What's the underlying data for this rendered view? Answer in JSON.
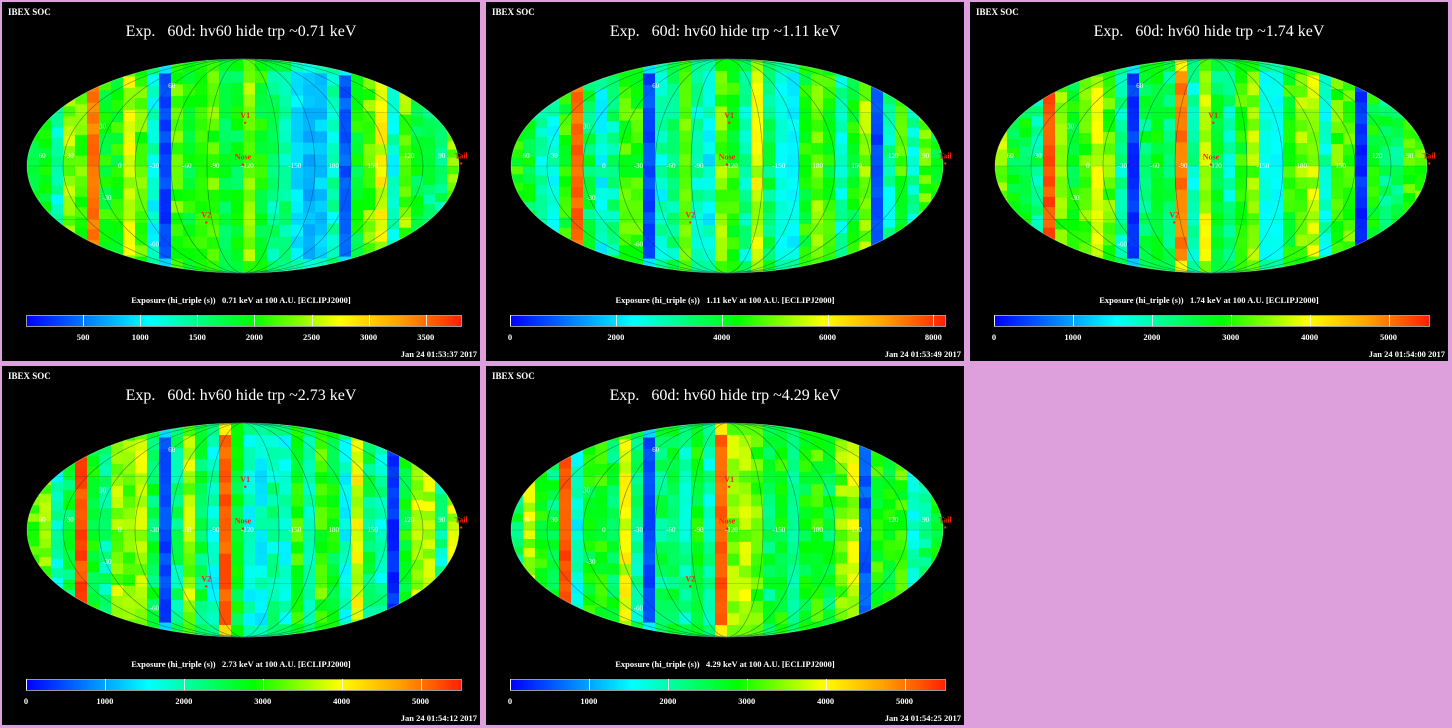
{
  "header_text": "IBEX SOC",
  "map_labels": {
    "lon": [
      "60",
      "30",
      "0",
      "-30",
      "-60",
      "-90",
      "-120",
      "-150",
      "180",
      "150",
      "120",
      "90"
    ],
    "lat": [
      "60",
      "30",
      "-30",
      "-60"
    ],
    "markers": [
      "V1",
      "Nose",
      "V2",
      "Tail"
    ]
  },
  "panels": [
    {
      "title": "Exp.   60d: hv60 hide trp ~0.71 keV",
      "caption": "Exposure (hi_triple (s))   0.71 keV at 100 A.U. [ECLIPJ2000]",
      "timestamp": "Jan 24 01:53:37 2017",
      "colorbar": {
        "min": 0,
        "max": 3800,
        "ticks": [
          "500",
          "1000",
          "1500",
          "2000",
          "2500",
          "3000",
          "3500"
        ]
      }
    },
    {
      "title": "Exp.   60d: hv60 hide trp ~1.11 keV",
      "caption": "Exposure (hi_triple (s))   1.11 keV at 100 A.U. [ECLIPJ2000]",
      "timestamp": "Jan 24 01:53:49 2017",
      "colorbar": {
        "min": 0,
        "max": 8200,
        "ticks": [
          "0",
          "2000",
          "4000",
          "6000",
          "8000"
        ]
      }
    },
    {
      "title": "Exp.   60d: hv60 hide trp ~1.74 keV",
      "caption": "Exposure (hi_triple (s))   1.74 keV at 100 A.U. [ECLIPJ2000]",
      "timestamp": "Jan 24 01:54:00 2017",
      "colorbar": {
        "min": 0,
        "max": 5500,
        "ticks": [
          "0",
          "1000",
          "2000",
          "3000",
          "4000",
          "5000"
        ]
      }
    },
    {
      "title": "Exp.   60d: hv60 hide trp ~2.73 keV",
      "caption": "Exposure (hi_triple (s))   2.73 keV at 100 A.U. [ECLIPJ2000]",
      "timestamp": "Jan 24 01:54:12 2017",
      "colorbar": {
        "min": 0,
        "max": 5500,
        "ticks": [
          "0",
          "1000",
          "2000",
          "3000",
          "4000",
          "5000"
        ]
      }
    },
    {
      "title": "Exp.   60d: hv60 hide trp ~4.29 keV",
      "caption": "Exposure (hi_triple (s))   4.29 keV at 100 A.U. [ECLIPJ2000]",
      "timestamp": "Jan 24 01:54:25 2017",
      "colorbar": {
        "min": 0,
        "max": 5500,
        "ticks": [
          "0",
          "1000",
          "2000",
          "3000",
          "4000",
          "5000"
        ]
      }
    }
  ]
}
